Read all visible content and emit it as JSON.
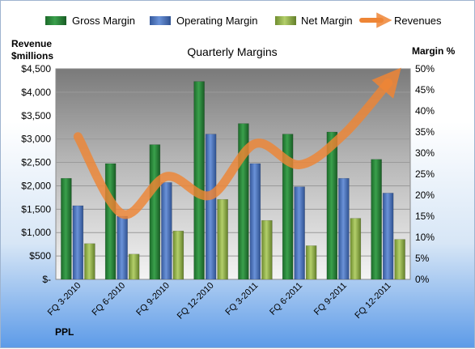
{
  "chart_data": {
    "type": "bar",
    "title": "Quarterly Margins",
    "company": "PPL",
    "ylabel_left_line1": "Revenue",
    "ylabel_left_line2": "$millions",
    "ylabel_right": "Margin %",
    "categories": [
      "FQ 3-2010",
      "FQ 6-2010",
      "FQ 9-2010",
      "FQ 12-2010",
      "FQ 3-2011",
      "FQ 6-2011",
      "FQ 9-2011",
      "FQ 12-2011"
    ],
    "left_axis": {
      "min": 0,
      "max": 4500,
      "step": 500,
      "tick_labels": [
        "$-",
        "$500",
        "$1,000",
        "$1,500",
        "$2,000",
        "$2,500",
        "$3,000",
        "$3,500",
        "$4,000",
        "$4,500"
      ]
    },
    "right_axis": {
      "min": 0,
      "max": 50,
      "step": 5,
      "tick_labels": [
        "0%",
        "5%",
        "10%",
        "15%",
        "20%",
        "25%",
        "30%",
        "35%",
        "40%",
        "45%",
        "50%"
      ]
    },
    "series": [
      {
        "name": "Gross Margin",
        "axis": "right",
        "kind": "bar",
        "color": "#2e8b3e",
        "values": [
          24,
          27.5,
          32,
          47,
          37,
          34.5,
          35,
          28.5
        ]
      },
      {
        "name": "Operating Margin",
        "axis": "right",
        "kind": "bar",
        "color": "#4f78c4",
        "values": [
          17.5,
          15,
          23,
          34.5,
          27.5,
          22,
          24,
          20.5
        ]
      },
      {
        "name": "Net Margin",
        "axis": "right",
        "kind": "bar",
        "color": "#9cba4f",
        "values": [
          8.5,
          6,
          11.5,
          19,
          14,
          8,
          14.5,
          9.5
        ]
      },
      {
        "name": "Revenues",
        "axis": "left",
        "kind": "line",
        "color": "#ee8535",
        "values": [
          3050,
          1400,
          2200,
          1800,
          2900,
          2450,
          3100,
          4200
        ]
      }
    ],
    "legend_position": "top",
    "grid": true
  }
}
